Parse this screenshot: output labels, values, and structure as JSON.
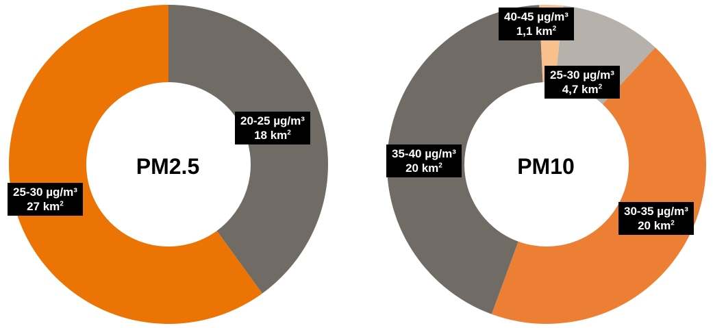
{
  "chart_data": [
    {
      "type": "pie",
      "title": "PM2.5",
      "unit": "km2",
      "slices": [
        {
          "range": "20-25 µg/m³",
          "area": "18 km",
          "value": 18,
          "color": "#706c65"
        },
        {
          "range": "25-30 µg/m³",
          "area": "27 km",
          "value": 27,
          "color": "#ec7404"
        }
      ]
    },
    {
      "type": "pie",
      "title": "PM10",
      "unit": "km2",
      "slices": [
        {
          "range": "25-30 µg/m³",
          "area": "4,7 km",
          "value": 4.7,
          "color": "#b6b1ab"
        },
        {
          "range": "30-35 µg/m³",
          "area": "20 km",
          "value": 20,
          "color": "#ec7f34"
        },
        {
          "range": "35-40 µg/m³",
          "area": "20 km",
          "value": 20,
          "color": "#706c65"
        },
        {
          "range": "40-45 µg/m³",
          "area": "1,1 km",
          "value": 1.1,
          "color": "#f7c08c"
        }
      ]
    }
  ]
}
